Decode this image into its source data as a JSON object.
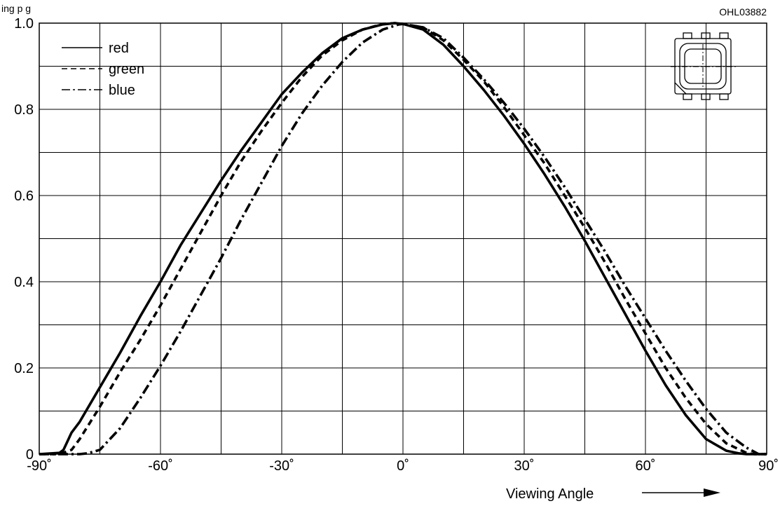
{
  "header_text": "ing        p                               g",
  "chart_data": {
    "type": "line",
    "title": "",
    "xlabel": "Viewing Angle",
    "ylabel": "",
    "code": "OHL03882",
    "xlim": [
      -90,
      90
    ],
    "ylim": [
      0,
      1.0
    ],
    "x_ticks": [
      -90,
      -60,
      -30,
      0,
      30,
      60,
      90
    ],
    "x_tick_labels": [
      "-90˚",
      "-60˚",
      "-30˚",
      "0˚",
      "30˚",
      "60˚",
      "90˚"
    ],
    "x_minor_grid": [
      -75,
      -45,
      -15,
      15,
      45,
      75
    ],
    "y_ticks": [
      0,
      0.2,
      0.4,
      0.6,
      0.8,
      1.0
    ],
    "y_tick_labels": [
      "0",
      "0.2",
      "0.4",
      "0.6",
      "0.8",
      "1.0"
    ],
    "y_minor_grid": [
      0.1,
      0.3,
      0.5,
      0.7,
      0.9
    ],
    "grid": true,
    "legend": "top-left",
    "series": [
      {
        "name": "red",
        "style": "solid",
        "color": "#000000",
        "x": [
          -90,
          -85,
          -84,
          -83,
          -82,
          -80,
          -75,
          -70,
          -65,
          -60,
          -55,
          -50,
          -45,
          -40,
          -35,
          -30,
          -25,
          -20,
          -15,
          -10,
          -5,
          -2,
          0,
          5,
          10,
          15,
          20,
          25,
          30,
          35,
          40,
          45,
          50,
          55,
          60,
          65,
          70,
          75,
          80,
          83,
          85,
          88,
          90
        ],
        "y": [
          0,
          0.003,
          0.01,
          0.03,
          0.05,
          0.075,
          0.155,
          0.235,
          0.32,
          0.4,
          0.485,
          0.56,
          0.635,
          0.705,
          0.77,
          0.835,
          0.885,
          0.93,
          0.965,
          0.985,
          0.997,
          1.0,
          0.998,
          0.985,
          0.95,
          0.9,
          0.845,
          0.785,
          0.72,
          0.65,
          0.575,
          0.495,
          0.41,
          0.325,
          0.24,
          0.16,
          0.09,
          0.035,
          0.008,
          0.002,
          0,
          0,
          0
        ]
      },
      {
        "name": "green",
        "style": "dashed",
        "color": "#000000",
        "x": [
          -90,
          -85,
          -82,
          -80,
          -75,
          -70,
          -65,
          -60,
          -55,
          -50,
          -45,
          -40,
          -35,
          -30,
          -25,
          -20,
          -15,
          -10,
          -5,
          -2,
          0,
          5,
          10,
          15,
          20,
          25,
          30,
          35,
          40,
          45,
          50,
          55,
          60,
          65,
          70,
          75,
          80,
          85,
          87,
          88,
          90
        ],
        "y": [
          0,
          0,
          0.01,
          0.035,
          0.11,
          0.19,
          0.265,
          0.345,
          0.43,
          0.515,
          0.6,
          0.68,
          0.75,
          0.815,
          0.875,
          0.925,
          0.96,
          0.985,
          0.998,
          1.0,
          0.998,
          0.99,
          0.96,
          0.915,
          0.865,
          0.805,
          0.74,
          0.675,
          0.6,
          0.525,
          0.445,
          0.36,
          0.28,
          0.2,
          0.13,
          0.07,
          0.025,
          0.003,
          0,
          0,
          0
        ]
      },
      {
        "name": "blue",
        "style": "dash-dot",
        "color": "#000000",
        "x": [
          -90,
          -80,
          -78,
          -75,
          -70,
          -65,
          -60,
          -55,
          -50,
          -45,
          -40,
          -35,
          -30,
          -25,
          -20,
          -15,
          -10,
          -5,
          -1,
          0,
          5,
          10,
          15,
          20,
          25,
          30,
          35,
          40,
          45,
          50,
          55,
          60,
          65,
          70,
          75,
          80,
          85,
          88,
          90
        ],
        "y": [
          0,
          0,
          0.002,
          0.01,
          0.06,
          0.13,
          0.205,
          0.285,
          0.37,
          0.455,
          0.545,
          0.63,
          0.715,
          0.79,
          0.855,
          0.91,
          0.955,
          0.985,
          0.997,
          0.998,
          0.99,
          0.965,
          0.92,
          0.87,
          0.815,
          0.755,
          0.69,
          0.62,
          0.545,
          0.47,
          0.39,
          0.315,
          0.24,
          0.17,
          0.105,
          0.05,
          0.015,
          0,
          0
        ]
      }
    ]
  }
}
